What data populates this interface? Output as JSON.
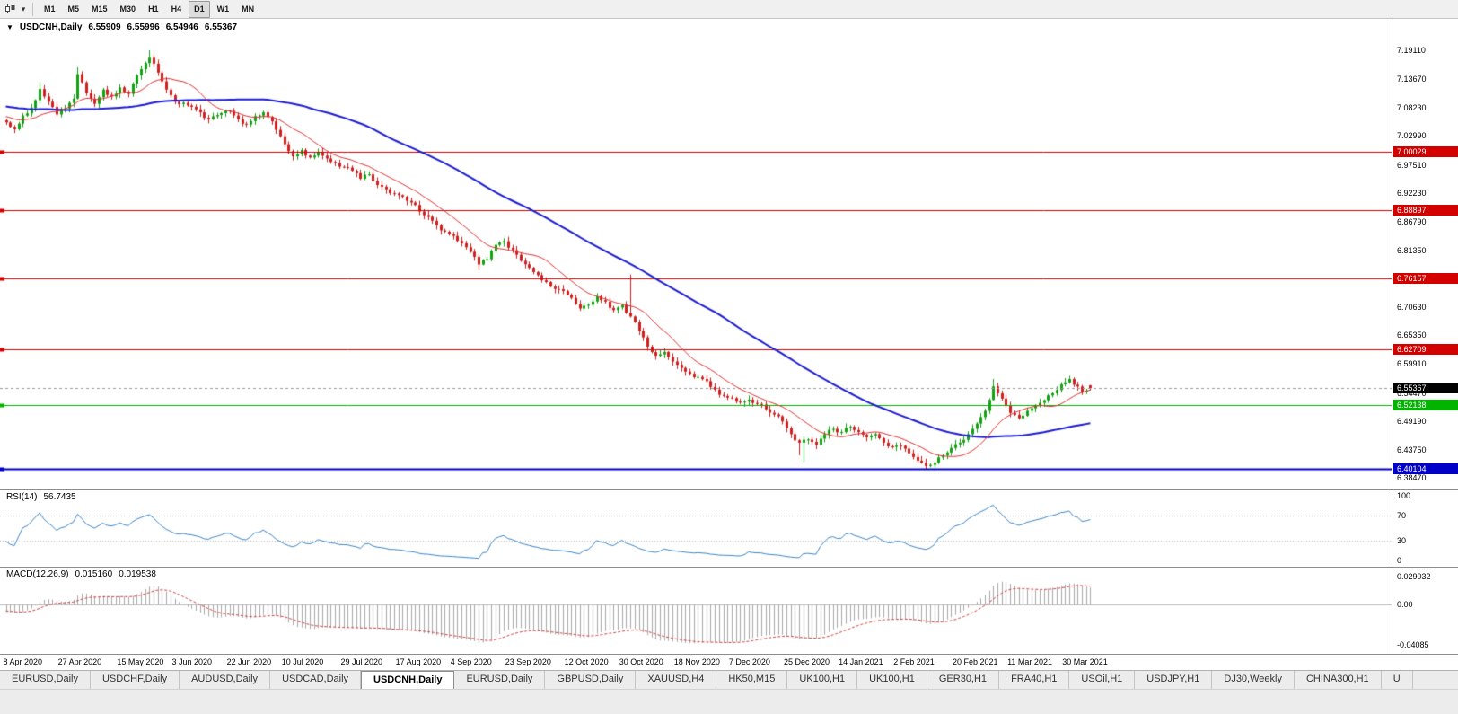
{
  "toolbar": {
    "icons": {
      "chart_type": "candlestick-chart-icon",
      "dropdown_caret": "▾"
    },
    "timeframes": [
      {
        "label": "M1",
        "active": false
      },
      {
        "label": "M5",
        "active": false
      },
      {
        "label": "M15",
        "active": false
      },
      {
        "label": "M30",
        "active": false
      },
      {
        "label": "H1",
        "active": false
      },
      {
        "label": "H4",
        "active": false
      },
      {
        "label": "D1",
        "active": true
      },
      {
        "label": "W1",
        "active": false
      },
      {
        "label": "MN",
        "active": false
      }
    ]
  },
  "chart": {
    "marker": "▼",
    "symbol_period": "USDCNH,Daily",
    "open": "6.55909",
    "high": "6.55996",
    "low": "6.54946",
    "close": "6.55367",
    "price_axis_labels": [
      "7.19110",
      "7.13670",
      "7.08230",
      "7.02990",
      "6.97510",
      "6.92230",
      "6.86790",
      "6.81350",
      "6.76050",
      "6.70630",
      "6.65350",
      "6.59910",
      "6.54470",
      "6.49190",
      "6.43750",
      "6.38470"
    ],
    "levels": [
      {
        "value": "7.00029",
        "color": "#d40000",
        "width": 1
      },
      {
        "value": "6.88897",
        "color": "#d40000",
        "width": 1
      },
      {
        "value": "6.76157",
        "color": "#d40000",
        "width": 1
      },
      {
        "value": "6.62709",
        "color": "#d40000",
        "width": 1
      },
      {
        "value": "6.52138",
        "color": "#00b400",
        "width": 1
      },
      {
        "value": "6.40104",
        "color": "#0000c8",
        "width": 2
      }
    ],
    "current_price_badge_color": "#000000",
    "date_axis_labels": [
      "8 Apr 2020",
      "27 Apr 2020",
      "15 May 2020",
      "3 Jun 2020",
      "22 Jun 2020",
      "10 Jul 2020",
      "29 Jul 2020",
      "17 Aug 2020",
      "4 Sep 2020",
      "23 Sep 2020",
      "12 Oct 2020",
      "30 Oct 2020",
      "18 Nov 2020",
      "7 Dec 2020",
      "25 Dec 2020",
      "14 Jan 2021",
      "2 Feb 2021",
      "20 Feb 2021",
      "11 Mar 2021",
      "30 Mar 2021"
    ]
  },
  "rsi": {
    "name": "RSI(14)",
    "value": "56.7435",
    "axis_labels": [
      "100",
      "70",
      "30",
      "0"
    ],
    "guide_levels": [
      70,
      30
    ]
  },
  "macd": {
    "name": "MACD(12,26,9)",
    "value_main": "0.015160",
    "value_signal": "0.019538",
    "axis_labels": [
      "0.029032",
      "0.00",
      "-0.04085"
    ]
  },
  "tabs": {
    "items": [
      {
        "label": "EURUSD,Daily",
        "active": false
      },
      {
        "label": "USDCHF,Daily",
        "active": false
      },
      {
        "label": "AUDUSD,Daily",
        "active": false
      },
      {
        "label": "USDCAD,Daily",
        "active": false
      },
      {
        "label": "USDCNH,Daily",
        "active": true
      },
      {
        "label": "EURUSD,Daily",
        "active": false
      },
      {
        "label": "GBPUSD,Daily",
        "active": false
      },
      {
        "label": "XAUUSD,H4",
        "active": false
      },
      {
        "label": "HK50,M15",
        "active": false
      },
      {
        "label": "UK100,H1",
        "active": false
      },
      {
        "label": "UK100,H1",
        "active": false
      },
      {
        "label": "GER30,H1",
        "active": false
      },
      {
        "label": "FRA40,H1",
        "active": false
      },
      {
        "label": "USOil,H1",
        "active": false
      },
      {
        "label": "USDJPY,H1",
        "active": false
      },
      {
        "label": "DJ30,Weekly",
        "active": false
      },
      {
        "label": "CHINA300,H1",
        "active": false
      },
      {
        "label": "U",
        "active": false
      }
    ]
  },
  "chart_data": {
    "type": "candlestick",
    "symbol": "USDCNH",
    "timeframe": "Daily",
    "x_range": [
      "8 Apr 2020",
      "30 Mar 2021"
    ],
    "y_axis_top": 7.1911,
    "y_axis_bottom": 6.3847,
    "num_candles": 258,
    "close_anchors": [
      [
        0,
        7.055
      ],
      [
        2,
        7.042
      ],
      [
        4,
        7.068
      ],
      [
        6,
        7.082
      ],
      [
        8,
        7.118
      ],
      [
        10,
        7.094
      ],
      [
        12,
        7.07
      ],
      [
        13,
        7.078
      ],
      [
        15,
        7.092
      ],
      [
        16,
        7.1
      ],
      [
        17,
        7.146
      ],
      [
        19,
        7.11
      ],
      [
        21,
        7.09
      ],
      [
        23,
        7.117
      ],
      [
        25,
        7.104
      ],
      [
        27,
        7.121
      ],
      [
        29,
        7.109
      ],
      [
        31,
        7.144
      ],
      [
        33,
        7.167
      ],
      [
        34,
        7.177
      ],
      [
        36,
        7.149
      ],
      [
        38,
        7.117
      ],
      [
        40,
        7.094
      ],
      [
        43,
        7.087
      ],
      [
        46,
        7.074
      ],
      [
        48,
        7.061
      ],
      [
        50,
        7.069
      ],
      [
        53,
        7.077
      ],
      [
        55,
        7.061
      ],
      [
        57,
        7.051
      ],
      [
        59,
        7.067
      ],
      [
        61,
        7.074
      ],
      [
        63,
        7.057
      ],
      [
        65,
        7.029
      ],
      [
        67,
        7.001
      ],
      [
        68,
        6.991
      ],
      [
        70,
        7.003
      ],
      [
        72,
        6.989
      ],
      [
        74,
        6.999
      ],
      [
        76,
        6.987
      ],
      [
        78,
        6.979
      ],
      [
        80,
        6.971
      ],
      [
        82,
        6.964
      ],
      [
        84,
        6.949
      ],
      [
        86,
        6.957
      ],
      [
        88,
        6.937
      ],
      [
        90,
        6.929
      ],
      [
        92,
        6.921
      ],
      [
        94,
        6.915
      ],
      [
        96,
        6.904
      ],
      [
        98,
        6.887
      ],
      [
        100,
        6.877
      ],
      [
        102,
        6.861
      ],
      [
        104,
        6.849
      ],
      [
        106,
        6.841
      ],
      [
        108,
        6.827
      ],
      [
        110,
        6.811
      ],
      [
        112,
        6.787
      ],
      [
        114,
        6.797
      ],
      [
        116,
        6.824
      ],
      [
        118,
        6.831
      ],
      [
        120,
        6.814
      ],
      [
        122,
        6.794
      ],
      [
        124,
        6.781
      ],
      [
        126,
        6.767
      ],
      [
        128,
        6.754
      ],
      [
        130,
        6.741
      ],
      [
        132,
        6.737
      ],
      [
        134,
        6.724
      ],
      [
        136,
        6.704
      ],
      [
        138,
        6.711
      ],
      [
        140,
        6.727
      ],
      [
        142,
        6.717
      ],
      [
        144,
        6.701
      ],
      [
        146,
        6.711
      ],
      [
        148,
        6.689
      ],
      [
        150,
        6.662
      ],
      [
        152,
        6.632
      ],
      [
        154,
        6.615
      ],
      [
        156,
        6.622
      ],
      [
        158,
        6.604
      ],
      [
        160,
        6.592
      ],
      [
        162,
        6.581
      ],
      [
        164,
        6.575
      ],
      [
        166,
        6.567
      ],
      [
        168,
        6.551
      ],
      [
        170,
        6.539
      ],
      [
        172,
        6.535
      ],
      [
        174,
        6.527
      ],
      [
        176,
        6.532
      ],
      [
        178,
        6.524
      ],
      [
        180,
        6.514
      ],
      [
        182,
        6.504
      ],
      [
        184,
        6.491
      ],
      [
        186,
        6.467
      ],
      [
        188,
        6.451
      ],
      [
        190,
        6.457
      ],
      [
        192,
        6.447
      ],
      [
        194,
        6.467
      ],
      [
        196,
        6.477
      ],
      [
        198,
        6.471
      ],
      [
        200,
        6.481
      ],
      [
        202,
        6.471
      ],
      [
        204,
        6.461
      ],
      [
        206,
        6.467
      ],
      [
        208,
        6.451
      ],
      [
        210,
        6.443
      ],
      [
        212,
        6.445
      ],
      [
        214,
        6.431
      ],
      [
        216,
        6.417
      ],
      [
        218,
        6.407
      ],
      [
        220,
        6.413
      ],
      [
        222,
        6.427
      ],
      [
        224,
        6.441
      ],
      [
        226,
        6.451
      ],
      [
        228,
        6.467
      ],
      [
        230,
        6.487
      ],
      [
        232,
        6.511
      ],
      [
        234,
        6.557
      ],
      [
        236,
        6.534
      ],
      [
        238,
        6.507
      ],
      [
        240,
        6.497
      ],
      [
        242,
        6.511
      ],
      [
        244,
        6.521
      ],
      [
        246,
        6.531
      ],
      [
        248,
        6.544
      ],
      [
        250,
        6.561
      ],
      [
        252,
        6.571
      ],
      [
        254,
        6.557
      ],
      [
        255,
        6.547
      ],
      [
        256,
        6.549
      ],
      [
        257,
        6.55367
      ]
    ],
    "high_overrides": {
      "8": 7.131,
      "17": 7.159,
      "34": 7.1911,
      "148": 6.768,
      "234": 6.571,
      "252": 6.577
    },
    "low_overrides": {
      "112": 6.776,
      "188": 6.427,
      "189": 6.414,
      "218": 6.4012,
      "219": 6.4045
    },
    "last_candle": {
      "open": 6.55909,
      "high": 6.55996,
      "low": 6.54946,
      "close": 6.55367
    },
    "ma_fast_period": 13,
    "ma_slow_period": 55,
    "rsi_period": 14,
    "rsi_last": 56.7435,
    "macd_params": [
      12,
      26,
      9
    ],
    "macd_last_main": 0.01516,
    "macd_last_signal": 0.019538,
    "date_tick_indices": [
      0,
      13,
      27,
      40,
      53,
      66,
      80,
      93,
      106,
      119,
      133,
      146,
      159,
      172,
      185,
      198,
      211,
      225,
      238,
      251
    ],
    "colors": {
      "up": "#12a112",
      "down": "#d01f1f",
      "ma_fast": "#e03232",
      "ma_slow": "#1c1cd0",
      "rsi_line": "#3e85c6",
      "macd_histogram": "#a8a8a8",
      "macd_signal": "#d04040",
      "bid_line": "#9a9a9a"
    }
  }
}
